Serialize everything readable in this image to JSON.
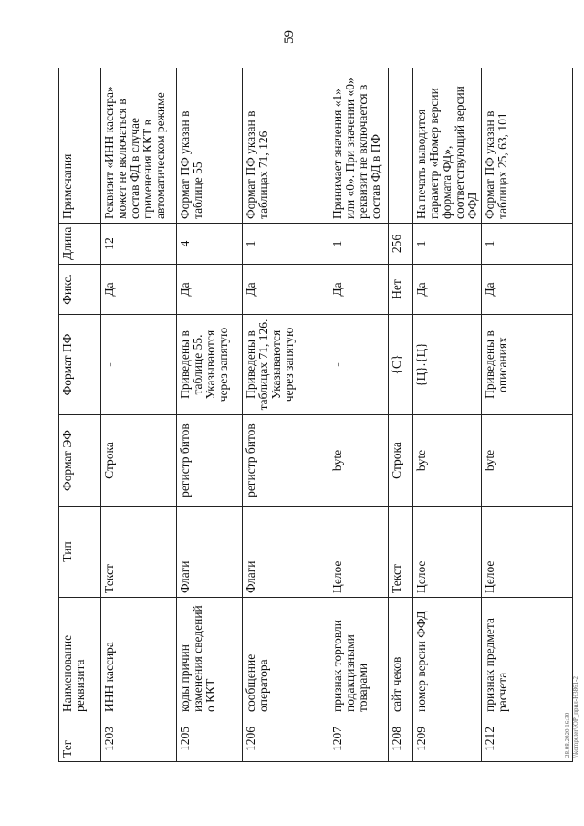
{
  "page_number": "59",
  "table": {
    "headers": [
      "Тег",
      "Наименование реквизита",
      "Тип",
      "Формат ЭФ",
      "Формат ПФ",
      "Фикс.",
      "Длина",
      "Примечания"
    ],
    "rows": [
      [
        "1203",
        "ИНН кассира",
        "Текст",
        "Строка",
        "-",
        "Да",
        "12",
        "Реквизит «ИНН кассира» может не включаться в состав ФД в случае применения ККТ в автоматическом режиме"
      ],
      [
        "1205",
        "коды причин изменения сведений о ККТ",
        "Флаги",
        "регистр битов",
        "Приведены в таблице 55. Указываются через запятую",
        "Да",
        "4",
        "Формат ПФ указан в таблице 55"
      ],
      [
        "1206",
        "сообщение оператора",
        "Флаги",
        "регистр битов",
        "Приведены в таблицах 71, 126. Указываются через запятую",
        "Да",
        "1",
        "Формат ПФ указан в таблицах 71, 126"
      ],
      [
        "1207",
        "признак торговли подакцизными товарами",
        "Целое",
        "byte",
        "-",
        "Да",
        "1",
        "Принимает значения «1» или «0». При значении «0» реквизит не включается в состав ФД в ПФ"
      ],
      [
        "1208",
        "сайт чеков",
        "Текст",
        "Строка",
        "{С}",
        "Нет",
        "256",
        ""
      ],
      [
        "1209",
        "номер версии ФФД",
        "Целое",
        "byte",
        "{Ц}.{Ц}",
        "Да",
        "1",
        "На печать выводится параметр «Номер версии формата ФД», соответствующий версии ФФД"
      ],
      [
        "1212",
        "признак предмета расчета",
        "Целое",
        "byte",
        "Приведены в описаниях",
        "Да",
        "1",
        "Формат ПФ указан в таблицах 25, 63, 101"
      ]
    ]
  },
  "stamp": {
    "line1": "28.08.2020 16:30",
    "line2": "\\\\komputer\\ЮР_прил-H3861-2"
  }
}
